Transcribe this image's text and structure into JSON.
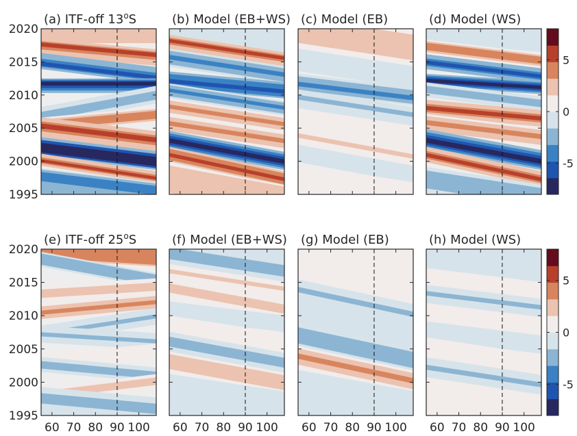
{
  "chart_data": {
    "type": "heatmap",
    "shared": {
      "x_ticks": [
        60,
        70,
        80,
        90,
        100
      ],
      "x_tick_labels": [
        "60",
        "70",
        "80",
        "90",
        "100"
      ],
      "xlim": [
        55,
        108
      ],
      "y_ticks": [
        1995,
        2000,
        2005,
        2010,
        2015,
        2020
      ],
      "y_tick_labels": [
        "1995",
        "2000",
        "2005",
        "2010",
        "2015",
        "2020"
      ],
      "ylim": [
        1995,
        2020
      ],
      "reference_line_x": 90,
      "colorbar": {
        "ticks": [
          -5,
          0,
          5
        ],
        "tick_labels": [
          "-5",
          "0",
          "5"
        ],
        "range": [
          -8,
          8
        ],
        "colors": [
          "#27285f",
          "#1f55b0",
          "#3b82c4",
          "#8cb5d3",
          "#d7e3ea",
          "#f2ecea",
          "#ebc3b0",
          "#d8855e",
          "#b8402b",
          "#640b1e"
        ]
      }
    },
    "panels": [
      {
        "id": "a",
        "title": "(a) ITF-off 13",
        "superscript": "o",
        "title_suffix": "S",
        "bands": [
          {
            "year": 2018.2,
            "value": 2.2,
            "slope": 0.0
          },
          {
            "year": 2016.7,
            "value": 5.5,
            "slope": -0.03
          },
          {
            "year": 2013.2,
            "value": -5.0,
            "slope": -0.04
          },
          {
            "year": 2011.8,
            "value": -8.0,
            "slope": 0.0
          },
          {
            "year": 2008.8,
            "value": -2.5,
            "slope": 0.06
          },
          {
            "year": 2006.5,
            "value": 4.5,
            "slope": 0.03
          },
          {
            "year": 2004.0,
            "value": 5.0,
            "slope": -0.04
          },
          {
            "year": 2000.5,
            "value": -8.5,
            "slope": -0.04
          },
          {
            "year": 1998.3,
            "value": 5.5,
            "slope": -0.05
          },
          {
            "year": 1996.8,
            "value": -4.0,
            "slope": -0.04
          }
        ]
      },
      {
        "id": "b",
        "title": "(b) Model (EB+WS)",
        "bands": [
          {
            "year": 2018.2,
            "value": -1.0,
            "slope": -0.05
          },
          {
            "year": 2016.5,
            "value": 5.5,
            "slope": -0.05
          },
          {
            "year": 2014.0,
            "value": -4.0,
            "slope": -0.05
          },
          {
            "year": 2011.0,
            "value": -6.0,
            "slope": -0.03
          },
          {
            "year": 2009.0,
            "value": -3.5,
            "slope": -0.05
          },
          {
            "year": 2006.5,
            "value": 4.0,
            "slope": -0.05
          },
          {
            "year": 2004.0,
            "value": 3.5,
            "slope": -0.05
          },
          {
            "year": 2001.0,
            "value": -6.5,
            "slope": -0.06
          },
          {
            "year": 1998.5,
            "value": 6.0,
            "slope": -0.07
          },
          {
            "year": 1996.5,
            "value": 3.0,
            "slope": -0.06
          }
        ]
      },
      {
        "id": "c",
        "title": "(c) Model (EB)",
        "bands": [
          {
            "year": 2017.0,
            "value": 2.5,
            "slope": -0.05
          },
          {
            "year": 2013.5,
            "value": -1.2,
            "slope": -0.05
          },
          {
            "year": 2010.2,
            "value": -4.0,
            "slope": -0.04
          },
          {
            "year": 2008.0,
            "value": -2.0,
            "slope": -0.05
          },
          {
            "year": 2004.5,
            "value": 1.5,
            "slope": -0.05
          },
          {
            "year": 2001.8,
            "value": 2.0,
            "slope": -0.06
          },
          {
            "year": 1999.0,
            "value": -1.5,
            "slope": -0.06
          },
          {
            "year": 1996.5,
            "value": 1.5,
            "slope": -0.05
          }
        ]
      },
      {
        "id": "d",
        "title": "(d) Model (WS)",
        "bands": [
          {
            "year": 2018.0,
            "value": -1.0,
            "slope": -0.03
          },
          {
            "year": 2016.0,
            "value": 4.5,
            "slope": -0.04
          },
          {
            "year": 2013.5,
            "value": -5.0,
            "slope": -0.04
          },
          {
            "year": 2011.5,
            "value": -6.5,
            "slope": -0.02
          },
          {
            "year": 2009.5,
            "value": -2.5,
            "slope": -0.04
          },
          {
            "year": 2007.0,
            "value": 5.0,
            "slope": -0.03
          },
          {
            "year": 2004.5,
            "value": 4.0,
            "slope": -0.04
          },
          {
            "year": 2001.0,
            "value": -7.0,
            "slope": -0.06
          },
          {
            "year": 1998.5,
            "value": 5.5,
            "slope": -0.07
          },
          {
            "year": 1996.3,
            "value": -2.5,
            "slope": -0.05
          }
        ]
      },
      {
        "id": "e",
        "title": "(e) ITF-off 25",
        "superscript": "o",
        "title_suffix": "S",
        "bands": [
          {
            "year": 2018.5,
            "value": 4.5,
            "slope": -0.02
          },
          {
            "year": 2016.5,
            "value": -3.0,
            "slope": -0.06
          },
          {
            "year": 2014.0,
            "value": 2.5,
            "slope": 0.02
          },
          {
            "year": 2011.5,
            "value": 3.5,
            "slope": 0.03
          },
          {
            "year": 2009.0,
            "value": -2.0,
            "slope": 0.05
          },
          {
            "year": 2006.5,
            "value": -2.0,
            "slope": -0.02
          },
          {
            "year": 2004.0,
            "value": 1.5,
            "slope": 0.03
          },
          {
            "year": 2001.5,
            "value": -2.5,
            "slope": -0.03
          },
          {
            "year": 1999.5,
            "value": 2.5,
            "slope": 0.04
          },
          {
            "year": 1997.0,
            "value": -2.0,
            "slope": -0.03
          }
        ]
      },
      {
        "id": "f",
        "title": "(f) Model (EB+WS)",
        "bands": [
          {
            "year": 2017.0,
            "value": -2.0,
            "slope": -0.05
          },
          {
            "year": 2015.0,
            "value": 2.0,
            "slope": -0.05
          },
          {
            "year": 2012.0,
            "value": 2.5,
            "slope": -0.06
          },
          {
            "year": 2009.5,
            "value": -1.5,
            "slope": -0.04
          },
          {
            "year": 2007.0,
            "value": 1.5,
            "slope": -0.05
          },
          {
            "year": 2004.0,
            "value": -2.5,
            "slope": -0.06
          },
          {
            "year": 2001.0,
            "value": 3.0,
            "slope": -0.06
          },
          {
            "year": 1998.0,
            "value": -1.5,
            "slope": -0.05
          }
        ]
      },
      {
        "id": "g",
        "title": "(g) Model (EB)",
        "bands": [
          {
            "year": 2014.5,
            "value": 1.5,
            "slope": -0.07
          },
          {
            "year": 2011.5,
            "value": -2.0,
            "slope": -0.07
          },
          {
            "year": 2008.0,
            "value": -1.5,
            "slope": -0.07
          },
          {
            "year": 2004.5,
            "value": -3.0,
            "slope": -0.07
          },
          {
            "year": 2001.5,
            "value": 3.5,
            "slope": -0.07
          },
          {
            "year": 1998.0,
            "value": -1.0,
            "slope": -0.06
          }
        ]
      },
      {
        "id": "h",
        "title": "(h) Model (WS)",
        "bands": [
          {
            "year": 2017.0,
            "value": -1.5,
            "slope": -0.04
          },
          {
            "year": 2014.5,
            "value": 1.5,
            "slope": -0.04
          },
          {
            "year": 2012.0,
            "value": -2.0,
            "slope": -0.04
          },
          {
            "year": 2009.0,
            "value": 1.2,
            "slope": -0.04
          },
          {
            "year": 2006.5,
            "value": -1.5,
            "slope": -0.04
          },
          {
            "year": 2003.5,
            "value": 1.0,
            "slope": -0.05
          },
          {
            "year": 2000.5,
            "value": -2.0,
            "slope": -0.05
          },
          {
            "year": 1997.5,
            "value": 1.0,
            "slope": -0.05
          }
        ]
      }
    ]
  }
}
